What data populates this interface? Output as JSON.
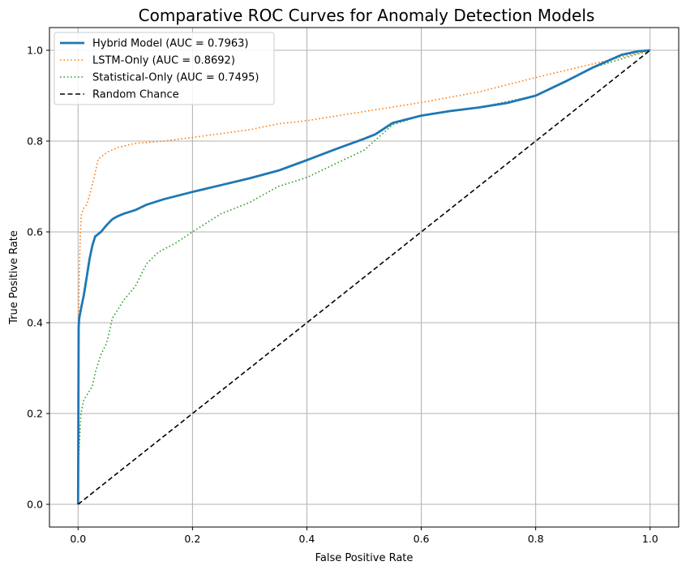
{
  "chart_data": {
    "type": "line",
    "title": "Comparative ROC Curves for Anomaly Detection Models",
    "xlabel": "False Positive Rate",
    "ylabel": "True Positive Rate",
    "xlim": [
      -0.05,
      1.05
    ],
    "ylim": [
      -0.05,
      1.05
    ],
    "xticks": [
      "0.0",
      "0.2",
      "0.4",
      "0.6",
      "0.8",
      "1.0"
    ],
    "yticks": [
      "0.0",
      "0.2",
      "0.4",
      "0.6",
      "0.8",
      "1.0"
    ],
    "grid": true,
    "legend_position": "top-left",
    "series": [
      {
        "name": "Hybrid Model (AUC = 0.7963)",
        "color": "#1f77b4",
        "style": "solid",
        "x": [
          0,
          0.001,
          0.002,
          0.005,
          0.01,
          0.015,
          0.02,
          0.025,
          0.03,
          0.04,
          0.05,
          0.06,
          0.07,
          0.08,
          0.1,
          0.12,
          0.15,
          0.2,
          0.25,
          0.3,
          0.35,
          0.4,
          0.45,
          0.5,
          0.52,
          0.55,
          0.6,
          0.65,
          0.7,
          0.75,
          0.8,
          0.85,
          0.9,
          0.95,
          0.98,
          1.0
        ],
        "y": [
          0,
          0.39,
          0.41,
          0.43,
          0.46,
          0.5,
          0.54,
          0.57,
          0.59,
          0.6,
          0.615,
          0.628,
          0.635,
          0.64,
          0.648,
          0.66,
          0.672,
          0.688,
          0.703,
          0.718,
          0.735,
          0.758,
          0.782,
          0.805,
          0.815,
          0.84,
          0.856,
          0.866,
          0.874,
          0.884,
          0.9,
          0.93,
          0.962,
          0.99,
          0.998,
          1.0
        ]
      },
      {
        "name": "LSTM-Only (AUC = 0.8692)",
        "color": "#ff7f0e",
        "style": "dotted",
        "x": [
          0,
          0.001,
          0.002,
          0.004,
          0.006,
          0.01,
          0.015,
          0.02,
          0.03,
          0.035,
          0.04,
          0.05,
          0.07,
          0.1,
          0.15,
          0.2,
          0.3,
          0.35,
          0.4,
          0.5,
          0.6,
          0.7,
          0.8,
          0.9,
          1.0
        ],
        "y": [
          0,
          0.4,
          0.5,
          0.6,
          0.64,
          0.652,
          0.66,
          0.68,
          0.73,
          0.76,
          0.765,
          0.775,
          0.786,
          0.795,
          0.8,
          0.808,
          0.825,
          0.838,
          0.845,
          0.865,
          0.885,
          0.908,
          0.94,
          0.97,
          1.0
        ]
      },
      {
        "name": "Statistical-Only (AUC = 0.7495)",
        "color": "#2ca02c",
        "style": "dotted",
        "x": [
          0,
          0.001,
          0.003,
          0.005,
          0.01,
          0.015,
          0.02,
          0.025,
          0.03,
          0.04,
          0.05,
          0.06,
          0.07,
          0.08,
          0.1,
          0.12,
          0.14,
          0.17,
          0.2,
          0.25,
          0.3,
          0.35,
          0.4,
          0.45,
          0.5,
          0.55,
          0.6,
          0.7,
          0.8,
          0.9,
          1.0
        ],
        "y": [
          0,
          0.1,
          0.15,
          0.2,
          0.23,
          0.24,
          0.25,
          0.26,
          0.29,
          0.33,
          0.355,
          0.41,
          0.43,
          0.45,
          0.48,
          0.53,
          0.555,
          0.575,
          0.6,
          0.64,
          0.665,
          0.7,
          0.72,
          0.75,
          0.78,
          0.836,
          0.856,
          0.874,
          0.9,
          0.962,
          1.0
        ]
      },
      {
        "name": "Random Chance",
        "color": "#000000",
        "style": "dashed",
        "x": [
          0,
          1
        ],
        "y": [
          0,
          1
        ]
      }
    ]
  }
}
